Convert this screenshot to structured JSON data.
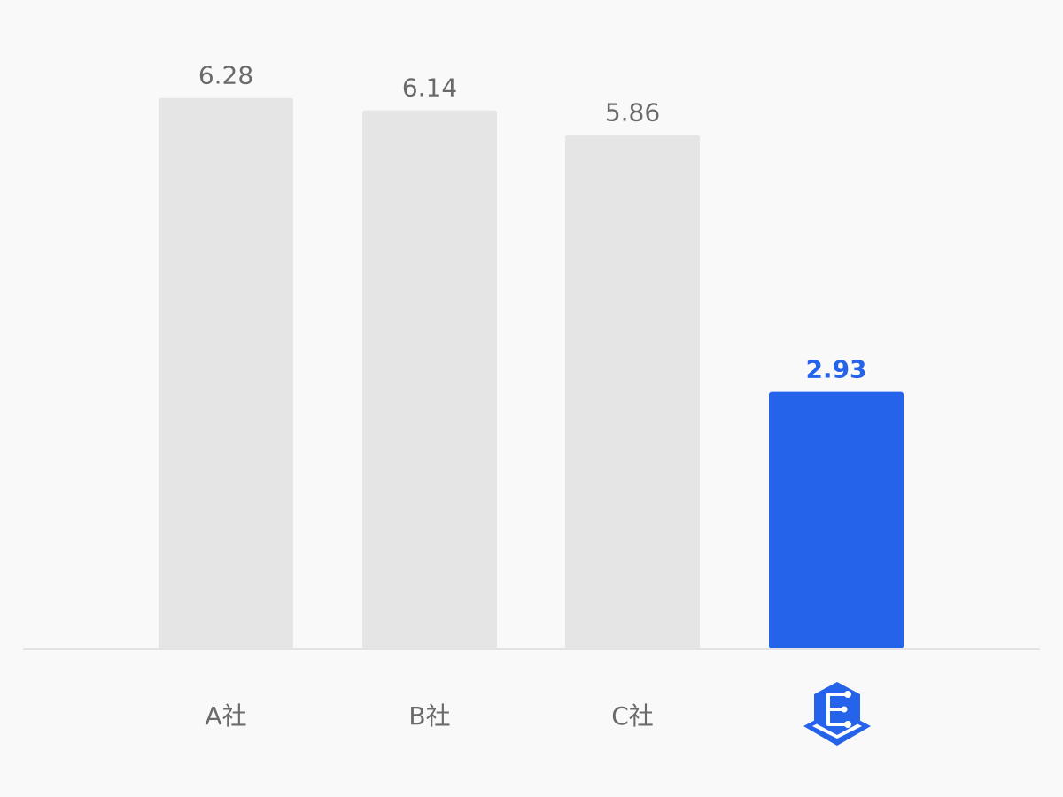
{
  "chart_data": {
    "type": "bar",
    "categories": [
      "A社",
      "B社",
      "C社",
      ""
    ],
    "values": [
      6.28,
      6.14,
      5.86,
      2.93
    ],
    "value_labels": [
      "6.28",
      "6.14",
      "5.86",
      "2.93"
    ],
    "highlight_index": 3,
    "highlight_category_icon": "brand-logo-icon",
    "ylim": [
      0,
      6.6
    ],
    "grid": false,
    "legend": "none",
    "title": "",
    "xlabel": "",
    "ylabel": "",
    "colors": {
      "bar": "#e5e5e5",
      "highlight": "#2563eb",
      "label": "#6a6a6a",
      "axis": "#e3e3e5",
      "background": "#f9f9f9"
    }
  }
}
